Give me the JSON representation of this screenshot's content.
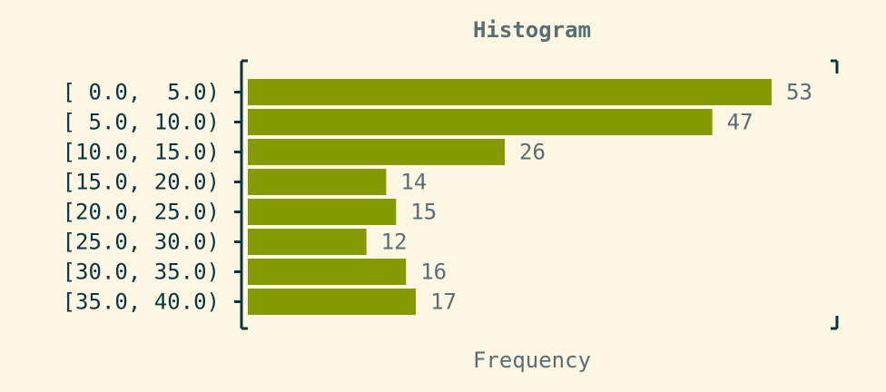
{
  "chart_data": {
    "type": "bar",
    "orientation": "horizontal",
    "title": "Histogram",
    "xlabel": "Frequency",
    "ylabel": "",
    "categories": [
      "[ 0.0,  5.0)",
      "[ 5.0, 10.0)",
      "[10.0, 15.0)",
      "[15.0, 20.0)",
      "[20.0, 25.0)",
      "[25.0, 30.0)",
      "[30.0, 35.0)",
      "[35.0, 40.0)"
    ],
    "values": [
      53,
      47,
      26,
      14,
      15,
      12,
      16,
      17
    ],
    "xlim": [
      0,
      53
    ],
    "grid": false,
    "colors": {
      "bar": "#859900",
      "text": "#586e75",
      "tick_text": "#073642",
      "axis": "#073642",
      "background": "#fdf6e3"
    }
  }
}
